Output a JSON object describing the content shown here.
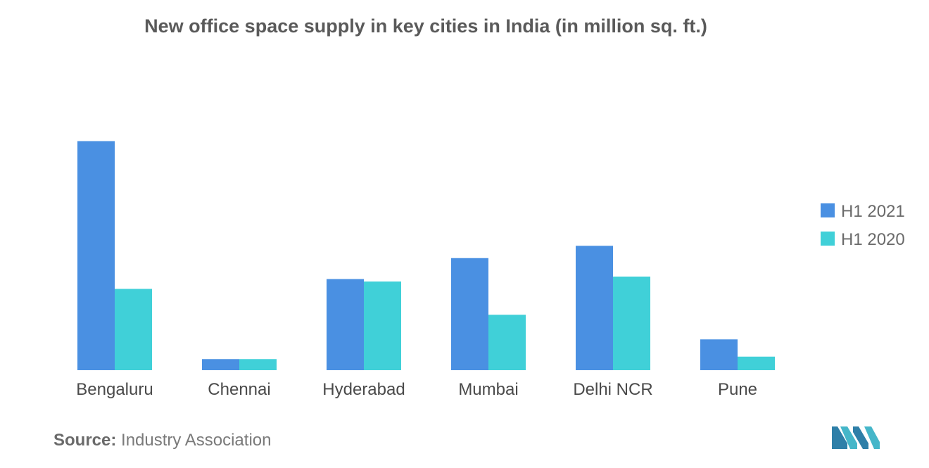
{
  "chart_data": {
    "type": "bar",
    "title": "New office space supply in key cities in India (in million sq. ft.)",
    "categories": [
      "Bengaluru",
      "Chennai",
      "Hyderabad",
      "Mumbai",
      "Delhi NCR",
      "Pune"
    ],
    "series": [
      {
        "name": "H1 2021",
        "color": "#4a90e2",
        "values": [
          9.3,
          0.45,
          3.7,
          4.55,
          5.05,
          1.25
        ]
      },
      {
        "name": "H1 2020",
        "color": "#40d0d8",
        "values": [
          3.3,
          0.45,
          3.6,
          2.25,
          3.8,
          0.55
        ]
      }
    ],
    "ylim": [
      0,
      10
    ],
    "grid": false,
    "legend_position": "right",
    "xlabel": "",
    "ylabel": ""
  },
  "source": {
    "label": "Source:",
    "text": "Industry Association"
  },
  "logo_icon": "mordor-intelligence-logo"
}
